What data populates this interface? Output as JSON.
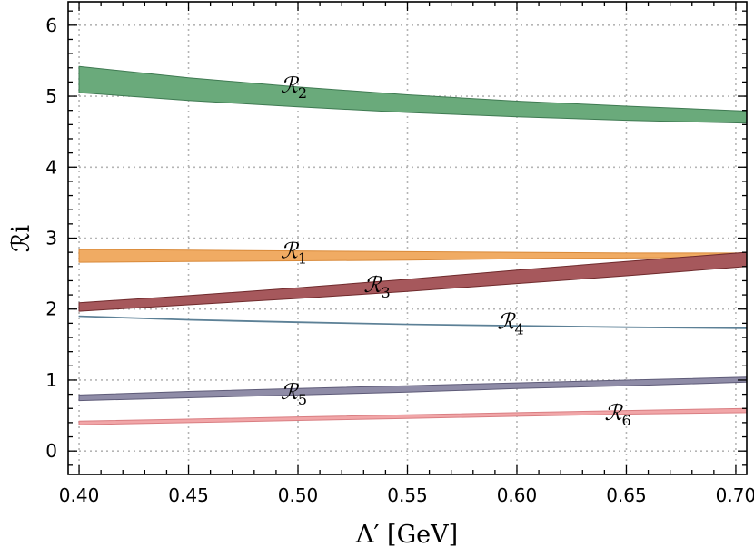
{
  "chart_data": {
    "type": "area",
    "xlabel": "Λ′ [GeV]",
    "ylabel": "ℛi",
    "xlim": [
      0.395,
      0.705
    ],
    "ylim": [
      -0.33,
      6.33
    ],
    "xticks": [
      "0.40",
      "0.45",
      "0.50",
      "0.55",
      "0.60",
      "0.65",
      "0.70"
    ],
    "yticks": [
      "0",
      "1",
      "2",
      "3",
      "4",
      "5",
      "6"
    ],
    "grid": true,
    "x": [
      0.4,
      0.45,
      0.5,
      0.55,
      0.6,
      0.65,
      0.705
    ],
    "series": [
      {
        "name": "ℛ2",
        "label_main": "ℛ",
        "label_sub": "2",
        "label_at": [
          0.492,
          5.05
        ],
        "color": "#6aaa7b",
        "edge": "#3f7a52",
        "lower": [
          5.05,
          4.94,
          4.85,
          4.77,
          4.71,
          4.66,
          4.62
        ],
        "upper": [
          5.42,
          5.26,
          5.13,
          5.02,
          4.93,
          4.86,
          4.79
        ]
      },
      {
        "name": "ℛ1",
        "label_main": "ℛ",
        "label_sub": "1",
        "label_at": [
          0.492,
          2.72
        ],
        "color": "#f0ab63",
        "edge": "#d98a3a",
        "lower": [
          2.66,
          2.67,
          2.68,
          2.69,
          2.71,
          2.72,
          2.73
        ],
        "upper": [
          2.84,
          2.83,
          2.82,
          2.81,
          2.8,
          2.79,
          2.79
        ]
      },
      {
        "name": "ℛ3",
        "label_main": "ℛ",
        "label_sub": "3",
        "label_at": [
          0.53,
          2.24
        ],
        "color": "#a6585c",
        "edge": "#6f2a2c",
        "lower": [
          1.97,
          2.06,
          2.15,
          2.25,
          2.36,
          2.47,
          2.6
        ],
        "upper": [
          2.09,
          2.19,
          2.3,
          2.42,
          2.55,
          2.67,
          2.8
        ]
      },
      {
        "name": "ℛ4",
        "label_main": "ℛ",
        "label_sub": "4",
        "label_at": [
          0.591,
          1.72
        ],
        "color": "#5c8096",
        "edge": "#5c8096",
        "lower": [
          1.895,
          1.845,
          1.81,
          1.78,
          1.76,
          1.74,
          1.725
        ],
        "upper": [
          1.905,
          1.855,
          1.82,
          1.79,
          1.77,
          1.75,
          1.735
        ]
      },
      {
        "name": "ℛ5",
        "label_main": "ℛ",
        "label_sub": "5",
        "label_at": [
          0.492,
          0.73
        ],
        "color": "#8f8ca7",
        "edge": "#5e5b78",
        "lower": [
          0.71,
          0.75,
          0.79,
          0.83,
          0.88,
          0.92,
          0.97
        ],
        "upper": [
          0.79,
          0.84,
          0.88,
          0.92,
          0.96,
          1.0,
          1.04
        ]
      },
      {
        "name": "ℛ6",
        "label_main": "ℛ",
        "label_sub": "6",
        "label_at": [
          0.64,
          0.44
        ],
        "color": "#f1a6a8",
        "edge": "#d97e82",
        "lower": [
          0.37,
          0.4,
          0.43,
          0.46,
          0.49,
          0.52,
          0.54
        ],
        "upper": [
          0.42,
          0.45,
          0.48,
          0.51,
          0.54,
          0.57,
          0.6
        ]
      }
    ]
  }
}
